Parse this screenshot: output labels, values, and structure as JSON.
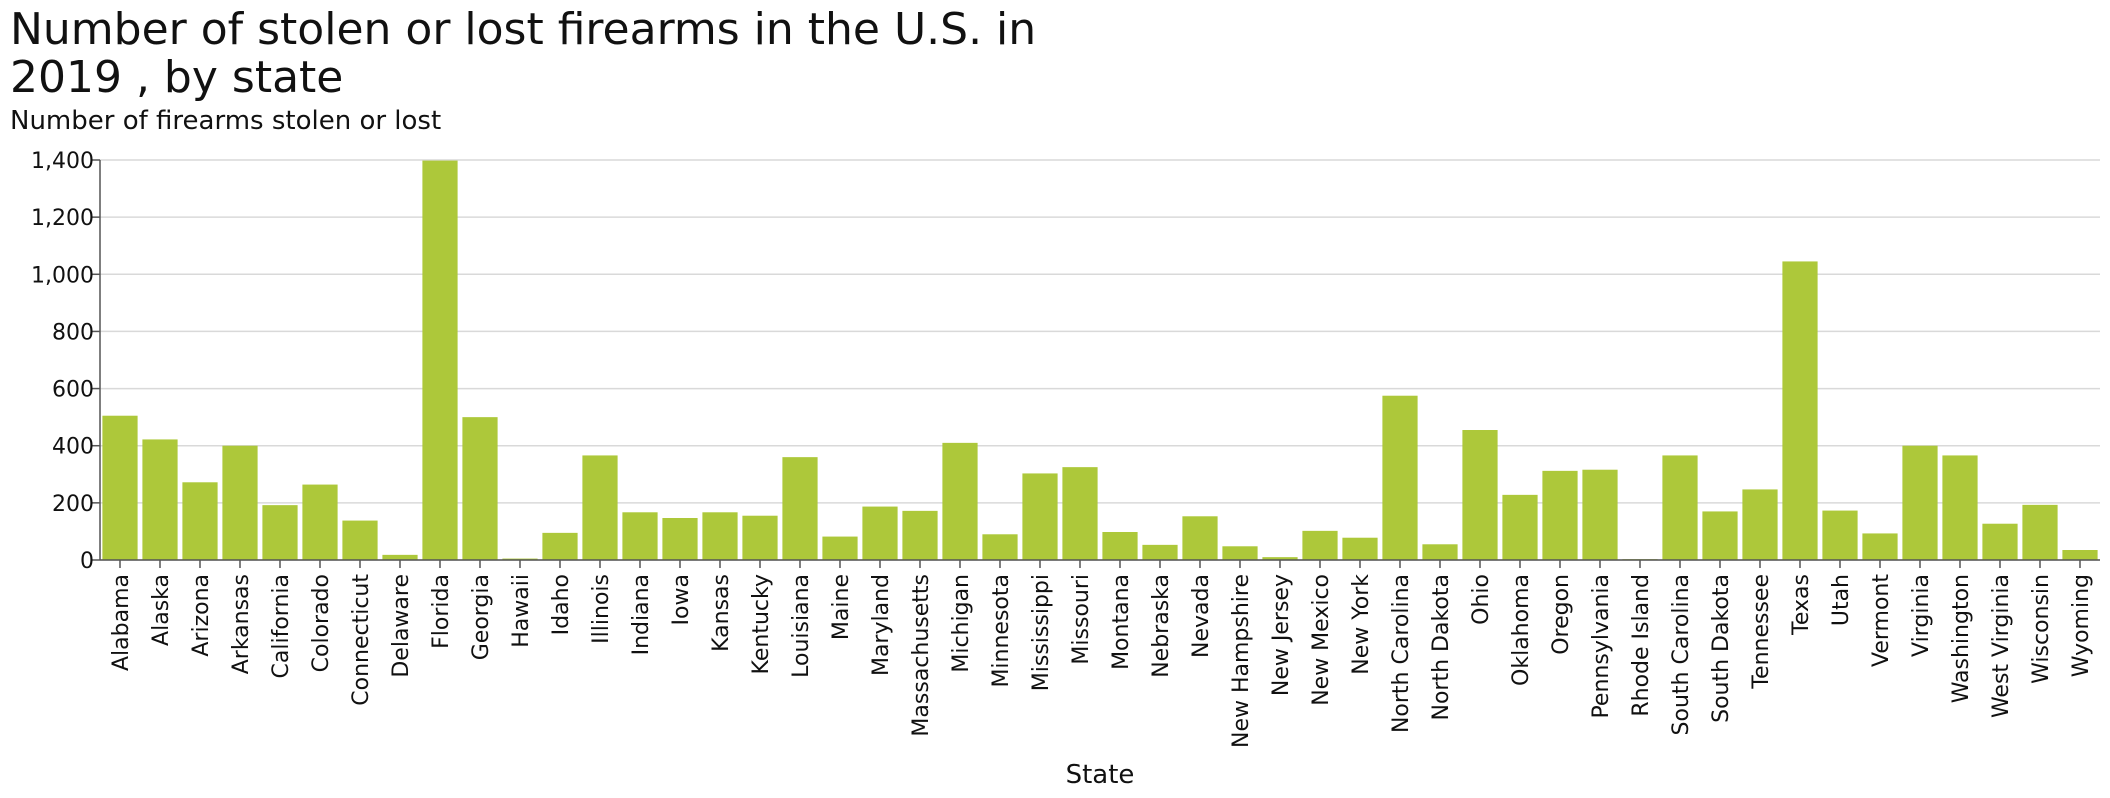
{
  "chart_data": {
    "type": "bar",
    "title": "Number of stolen or lost firearms in the U.S. in 2019 , by state",
    "subtitle": "Number of firearms stolen or lost",
    "xlabel": "State",
    "ylabel": "",
    "ylim": [
      0,
      1400
    ],
    "yticks": [
      0,
      200,
      400,
      600,
      800,
      1000,
      1200,
      1400
    ],
    "ytick_labels": [
      "0",
      "200",
      "400",
      "600",
      "800",
      "1,000",
      "1,200",
      "1,400"
    ],
    "grid": true,
    "bar_color": "#adc83a",
    "categories": [
      "Alabama",
      "Alaska",
      "Arizona",
      "Arkansas",
      "California",
      "Colorado",
      "Connecticut",
      "Delaware",
      "Florida",
      "Georgia",
      "Hawaii",
      "Idaho",
      "Illinois",
      "Indiana",
      "Iowa",
      "Kansas",
      "Kentucky",
      "Louisiana",
      "Maine",
      "Maryland",
      "Massachusetts",
      "Michigan",
      "Minnesota",
      "Mississippi",
      "Missouri",
      "Montana",
      "Nebraska",
      "Nevada",
      "New Hampshire",
      "New Jersey",
      "New Mexico",
      "New York",
      "North Carolina",
      "North Dakota",
      "Ohio",
      "Oklahoma",
      "Oregon",
      "Pennsylvania",
      "Rhode Island",
      "South Carolina",
      "South Dakota",
      "Tennessee",
      "Texas",
      "Utah",
      "Vermont",
      "Virginia",
      "Washington",
      "West Virginia",
      "Wisconsin",
      "Wyoming"
    ],
    "values": [
      505,
      422,
      272,
      400,
      192,
      264,
      138,
      18,
      1398,
      500,
      5,
      95,
      366,
      167,
      147,
      167,
      155,
      360,
      82,
      187,
      172,
      410,
      90,
      303,
      325,
      98,
      53,
      153,
      48,
      10,
      102,
      78,
      575,
      55,
      455,
      228,
      312,
      316,
      3,
      366,
      170,
      247,
      1045,
      173,
      93,
      400,
      366,
      127,
      193,
      35
    ]
  }
}
